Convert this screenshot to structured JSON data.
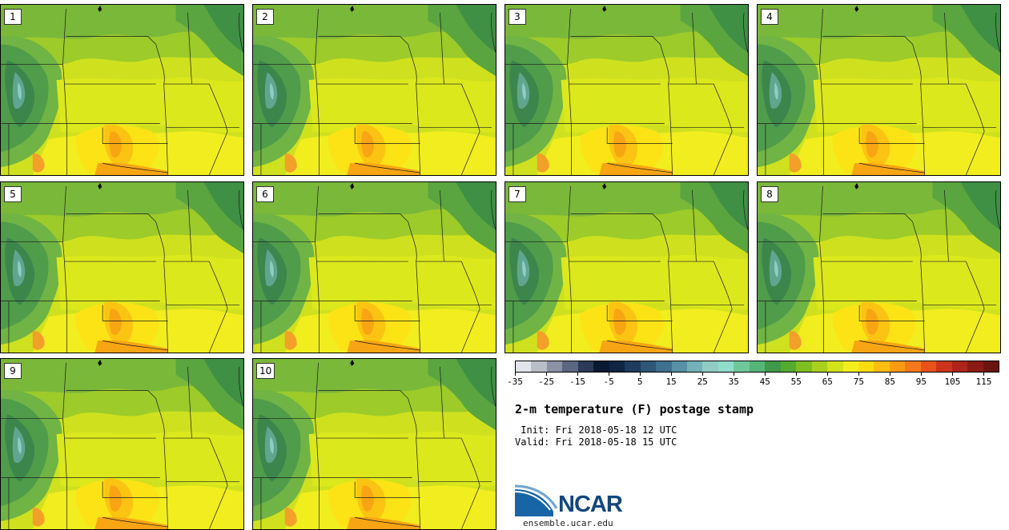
{
  "product": {
    "title": "2-m temperature (F) postage stamp",
    "init": " Init: Fri 2018-05-18 12 UTC",
    "valid": "Valid: Fri 2018-05-18 15 UTC"
  },
  "members": [
    "1",
    "2",
    "3",
    "4",
    "5",
    "6",
    "7",
    "8",
    "9",
    "10"
  ],
  "colorbar": {
    "units": "F",
    "min": -35,
    "max": 120,
    "tick_labels": [
      "-35",
      "-25",
      "-15",
      "-5",
      "5",
      "15",
      "25",
      "35",
      "45",
      "55",
      "65",
      "75",
      "85",
      "95",
      "105",
      "115"
    ],
    "colors": [
      "#e1e4ea",
      "#b9bdc8",
      "#8b92a5",
      "#5b6680",
      "#2c3a58",
      "#0b1a33",
      "#102542",
      "#1f3c5d",
      "#2e5677",
      "#3f7090",
      "#5791a5",
      "#73b1b8",
      "#90cbc4",
      "#8fdcc9",
      "#6ec89b",
      "#55b579",
      "#3e9a48",
      "#55ab2f",
      "#7fbe21",
      "#a8d11b",
      "#d1e31a",
      "#f3ef1e",
      "#fbdd12",
      "#fbbe10",
      "#f89b12",
      "#f4791a",
      "#e9531b",
      "#cc351c",
      "#ad2418",
      "#8b1a14",
      "#6a1510"
    ]
  },
  "branding": {
    "logo_text": "NCAR",
    "site": "ensemble.ucar.edu"
  }
}
